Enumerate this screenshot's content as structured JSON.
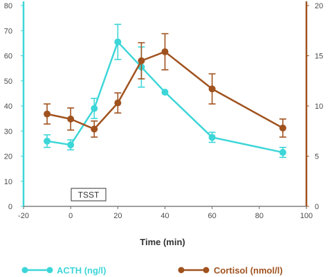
{
  "chart_data": {
    "type": "line",
    "title": "",
    "xlabel": "Time (min)",
    "x_ticks": [
      "-20",
      "0",
      "20",
      "40",
      "60",
      "80",
      "100"
    ],
    "xlim": [
      -20,
      100
    ],
    "y_left": {
      "lim": [
        0,
        80
      ],
      "ticks": [
        "0",
        "10",
        "20",
        "30",
        "40",
        "50",
        "60",
        "70",
        "80"
      ],
      "color": "#3dd6d8"
    },
    "y_right": {
      "lim": [
        0,
        20
      ],
      "ticks": [
        "0",
        "5",
        "10",
        "15",
        "20"
      ],
      "color": "#a0521e"
    },
    "grid": false,
    "legend_position": "bottom",
    "annotation": "TSST",
    "series": [
      {
        "name": "ACTH (ng/l)",
        "axis": "left",
        "color": "#3dd6d8",
        "x": [
          -10,
          0,
          10,
          20,
          30,
          40,
          60,
          90
        ],
        "y": [
          26,
          24.5,
          39,
          65.5,
          55.5,
          45.5,
          27.5,
          21.5
        ],
        "err": [
          2.5,
          2,
          4,
          7,
          8,
          0,
          2,
          2
        ]
      },
      {
        "name": "Cortisol (nmol/l)",
        "axis": "right",
        "color": "#a0521e",
        "x": [
          -10,
          0,
          10,
          20,
          30,
          40,
          60,
          90
        ],
        "y": [
          9.2,
          8.7,
          7.7,
          10.3,
          14.5,
          15.4,
          11.7,
          7.8
        ],
        "err": [
          1.0,
          1.1,
          0.8,
          1.0,
          1.8,
          1.8,
          1.5,
          0.9
        ]
      }
    ]
  }
}
